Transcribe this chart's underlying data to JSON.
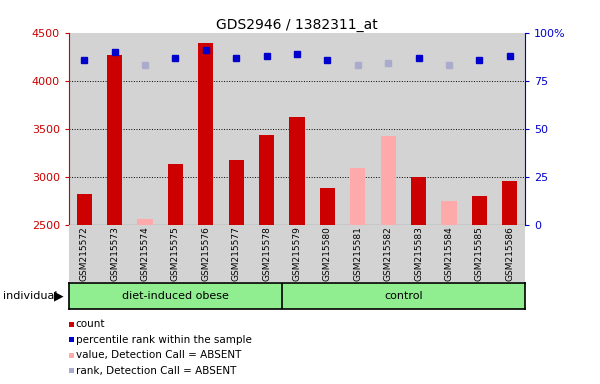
{
  "title": "GDS2946 / 1382311_at",
  "samples": [
    "GSM215572",
    "GSM215573",
    "GSM215574",
    "GSM215575",
    "GSM215576",
    "GSM215577",
    "GSM215578",
    "GSM215579",
    "GSM215580",
    "GSM215581",
    "GSM215582",
    "GSM215583",
    "GSM215584",
    "GSM215585",
    "GSM215586"
  ],
  "count_values": [
    2820,
    4270,
    null,
    3130,
    4390,
    3175,
    3430,
    3620,
    2880,
    null,
    null,
    3000,
    null,
    2800,
    2950
  ],
  "absent_count_values": [
    null,
    null,
    2560,
    null,
    null,
    null,
    null,
    null,
    null,
    3090,
    3420,
    null,
    2750,
    null,
    null
  ],
  "rank_values": [
    86,
    90,
    null,
    87,
    91,
    87,
    88,
    89,
    86,
    null,
    null,
    87,
    null,
    86,
    88
  ],
  "absent_rank_values": [
    null,
    null,
    83,
    null,
    null,
    null,
    null,
    null,
    null,
    83,
    84,
    null,
    83,
    null,
    null
  ],
  "groups": [
    "diet-induced obese",
    "diet-induced obese",
    "diet-induced obese",
    "diet-induced obese",
    "diet-induced obese",
    "diet-induced obese",
    "diet-induced obese",
    "control",
    "control",
    "control",
    "control",
    "control",
    "control",
    "control",
    "control"
  ],
  "n_obese": 7,
  "ylim_left": [
    2500,
    4500
  ],
  "ylim_right": [
    0,
    100
  ],
  "left_ticks": [
    2500,
    3000,
    3500,
    4000,
    4500
  ],
  "right_ticks": [
    0,
    25,
    50,
    75,
    100
  ],
  "bar_color": "#cc0000",
  "absent_bar_color": "#ffaaaa",
  "rank_color": "#0000cc",
  "absent_rank_color": "#aaaacc",
  "bg_color": "#d3d3d3",
  "group_bg": "#90ee90",
  "left_axis_color": "#cc0000",
  "right_axis_color": "#0000cc",
  "bar_width": 0.5,
  "legend_items": [
    {
      "color": "#cc0000",
      "label": "count"
    },
    {
      "color": "#0000cc",
      "label": "percentile rank within the sample"
    },
    {
      "color": "#ffaaaa",
      "label": "value, Detection Call = ABSENT"
    },
    {
      "color": "#aaaacc",
      "label": "rank, Detection Call = ABSENT"
    }
  ]
}
